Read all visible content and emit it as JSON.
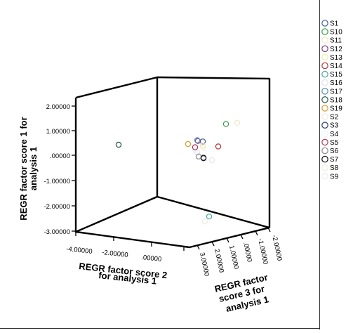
{
  "chart_data": {
    "type": "scatter",
    "title": "",
    "xlabel": [
      "REGR factor score   2",
      "for analysis 1"
    ],
    "ylabel": [
      "REGR factor score   1 for",
      "analysis 1"
    ],
    "zlabel": [
      "REGR factor",
      "score   3 for",
      "analysis 1"
    ],
    "x_axis": {
      "ticks": [
        "-4.00000",
        "-2.00000",
        ".00000"
      ]
    },
    "y_axis": {
      "ticks": [
        "2.00000",
        "1.00000",
        ".00000",
        "-1.00000",
        "-2.00000",
        "-3.00000"
      ],
      "ylim": [
        -3,
        2
      ]
    },
    "z_axis": {
      "ticks": [
        "3.00000",
        "2.00000",
        "1.00000",
        ".00000",
        "-1.00000",
        "-2.00000"
      ]
    },
    "legend_position": "right",
    "series": [
      {
        "name": "S1",
        "color": "#3f5fa8",
        "y": 0.55
      },
      {
        "name": "S10",
        "color": "#3aa34a",
        "y": 1.25
      },
      {
        "name": "S11",
        "color": "#f0e8c8",
        "y": 1.3
      },
      {
        "name": "S12",
        "color": "#7b3f8c",
        "y": 0.57
      },
      {
        "name": "S13",
        "color": "#f2eaa0",
        "y": 0.38
      },
      {
        "name": "S14",
        "color": "#c0303a",
        "y": 0.35
      },
      {
        "name": "S15",
        "color": "#4aa89a",
        "y": -2.45
      },
      {
        "name": "S16",
        "color": "#e2e2f0",
        "y": 0.1
      },
      {
        "name": "S17",
        "color": "#5b8fb8",
        "y": 0.6
      },
      {
        "name": "S18",
        "color": "#225540",
        "y": 0.42
      },
      {
        "name": "S19",
        "color": "#e09a2a",
        "y": 0.45
      },
      {
        "name": "S2",
        "color": "#f6e8e0",
        "y": 0.3
      },
      {
        "name": "S3",
        "color": "#2a3a78",
        "y": -0.12
      },
      {
        "name": "S4",
        "color": "#f0f4f8",
        "y": 0.2
      },
      {
        "name": "S5",
        "color": "#b03050",
        "y": 0.32
      },
      {
        "name": "S6",
        "color": "#8a8a8a",
        "y": -0.05
      },
      {
        "name": "S7",
        "color": "#111111",
        "y": -0.1
      },
      {
        "name": "S8",
        "color": "#e8f0e0",
        "y": -2.65
      },
      {
        "name": "S9",
        "color": "#ffffff",
        "y": -0.2
      }
    ]
  }
}
